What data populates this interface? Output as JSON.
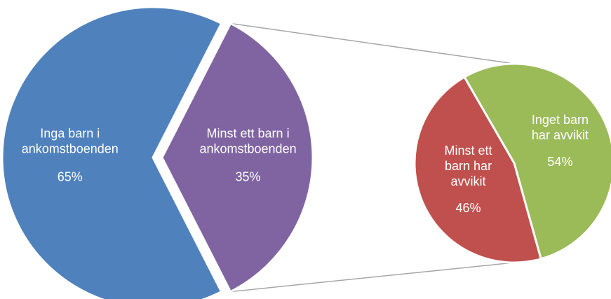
{
  "chart_data": [
    {
      "type": "pie",
      "slices": [
        {
          "label": "Inga barn i ankomstboenden",
          "label_lines": [
            "Inga barn i",
            "ankomstboenden"
          ],
          "value": 65,
          "value_label": "65%",
          "color": "#4f81bd"
        },
        {
          "label": "Minst ett barn i ankomstboenden",
          "label_lines": [
            "Minst ett barn i",
            "ankomstboenden"
          ],
          "value": 35,
          "value_label": "35%",
          "color": "#8064a2"
        }
      ],
      "exploded_slice": "Minst ett barn i ankomstboenden",
      "breakout_target": "secondary pie"
    },
    {
      "type": "pie",
      "slices": [
        {
          "label": "Inget barn har avvikit",
          "label_lines": [
            "Inget barn",
            "har avvikit"
          ],
          "value": 54,
          "value_label": "54%",
          "color": "#9bbb59"
        },
        {
          "label": "Minst ett barn har avvikit",
          "label_lines": [
            "Minst ett",
            "barn har",
            "avvikit"
          ],
          "value": 46,
          "value_label": "46%",
          "color": "#c0504d"
        }
      ]
    }
  ],
  "connector_color": "#a6a6a6",
  "slice_separator_color": "#ffffff"
}
